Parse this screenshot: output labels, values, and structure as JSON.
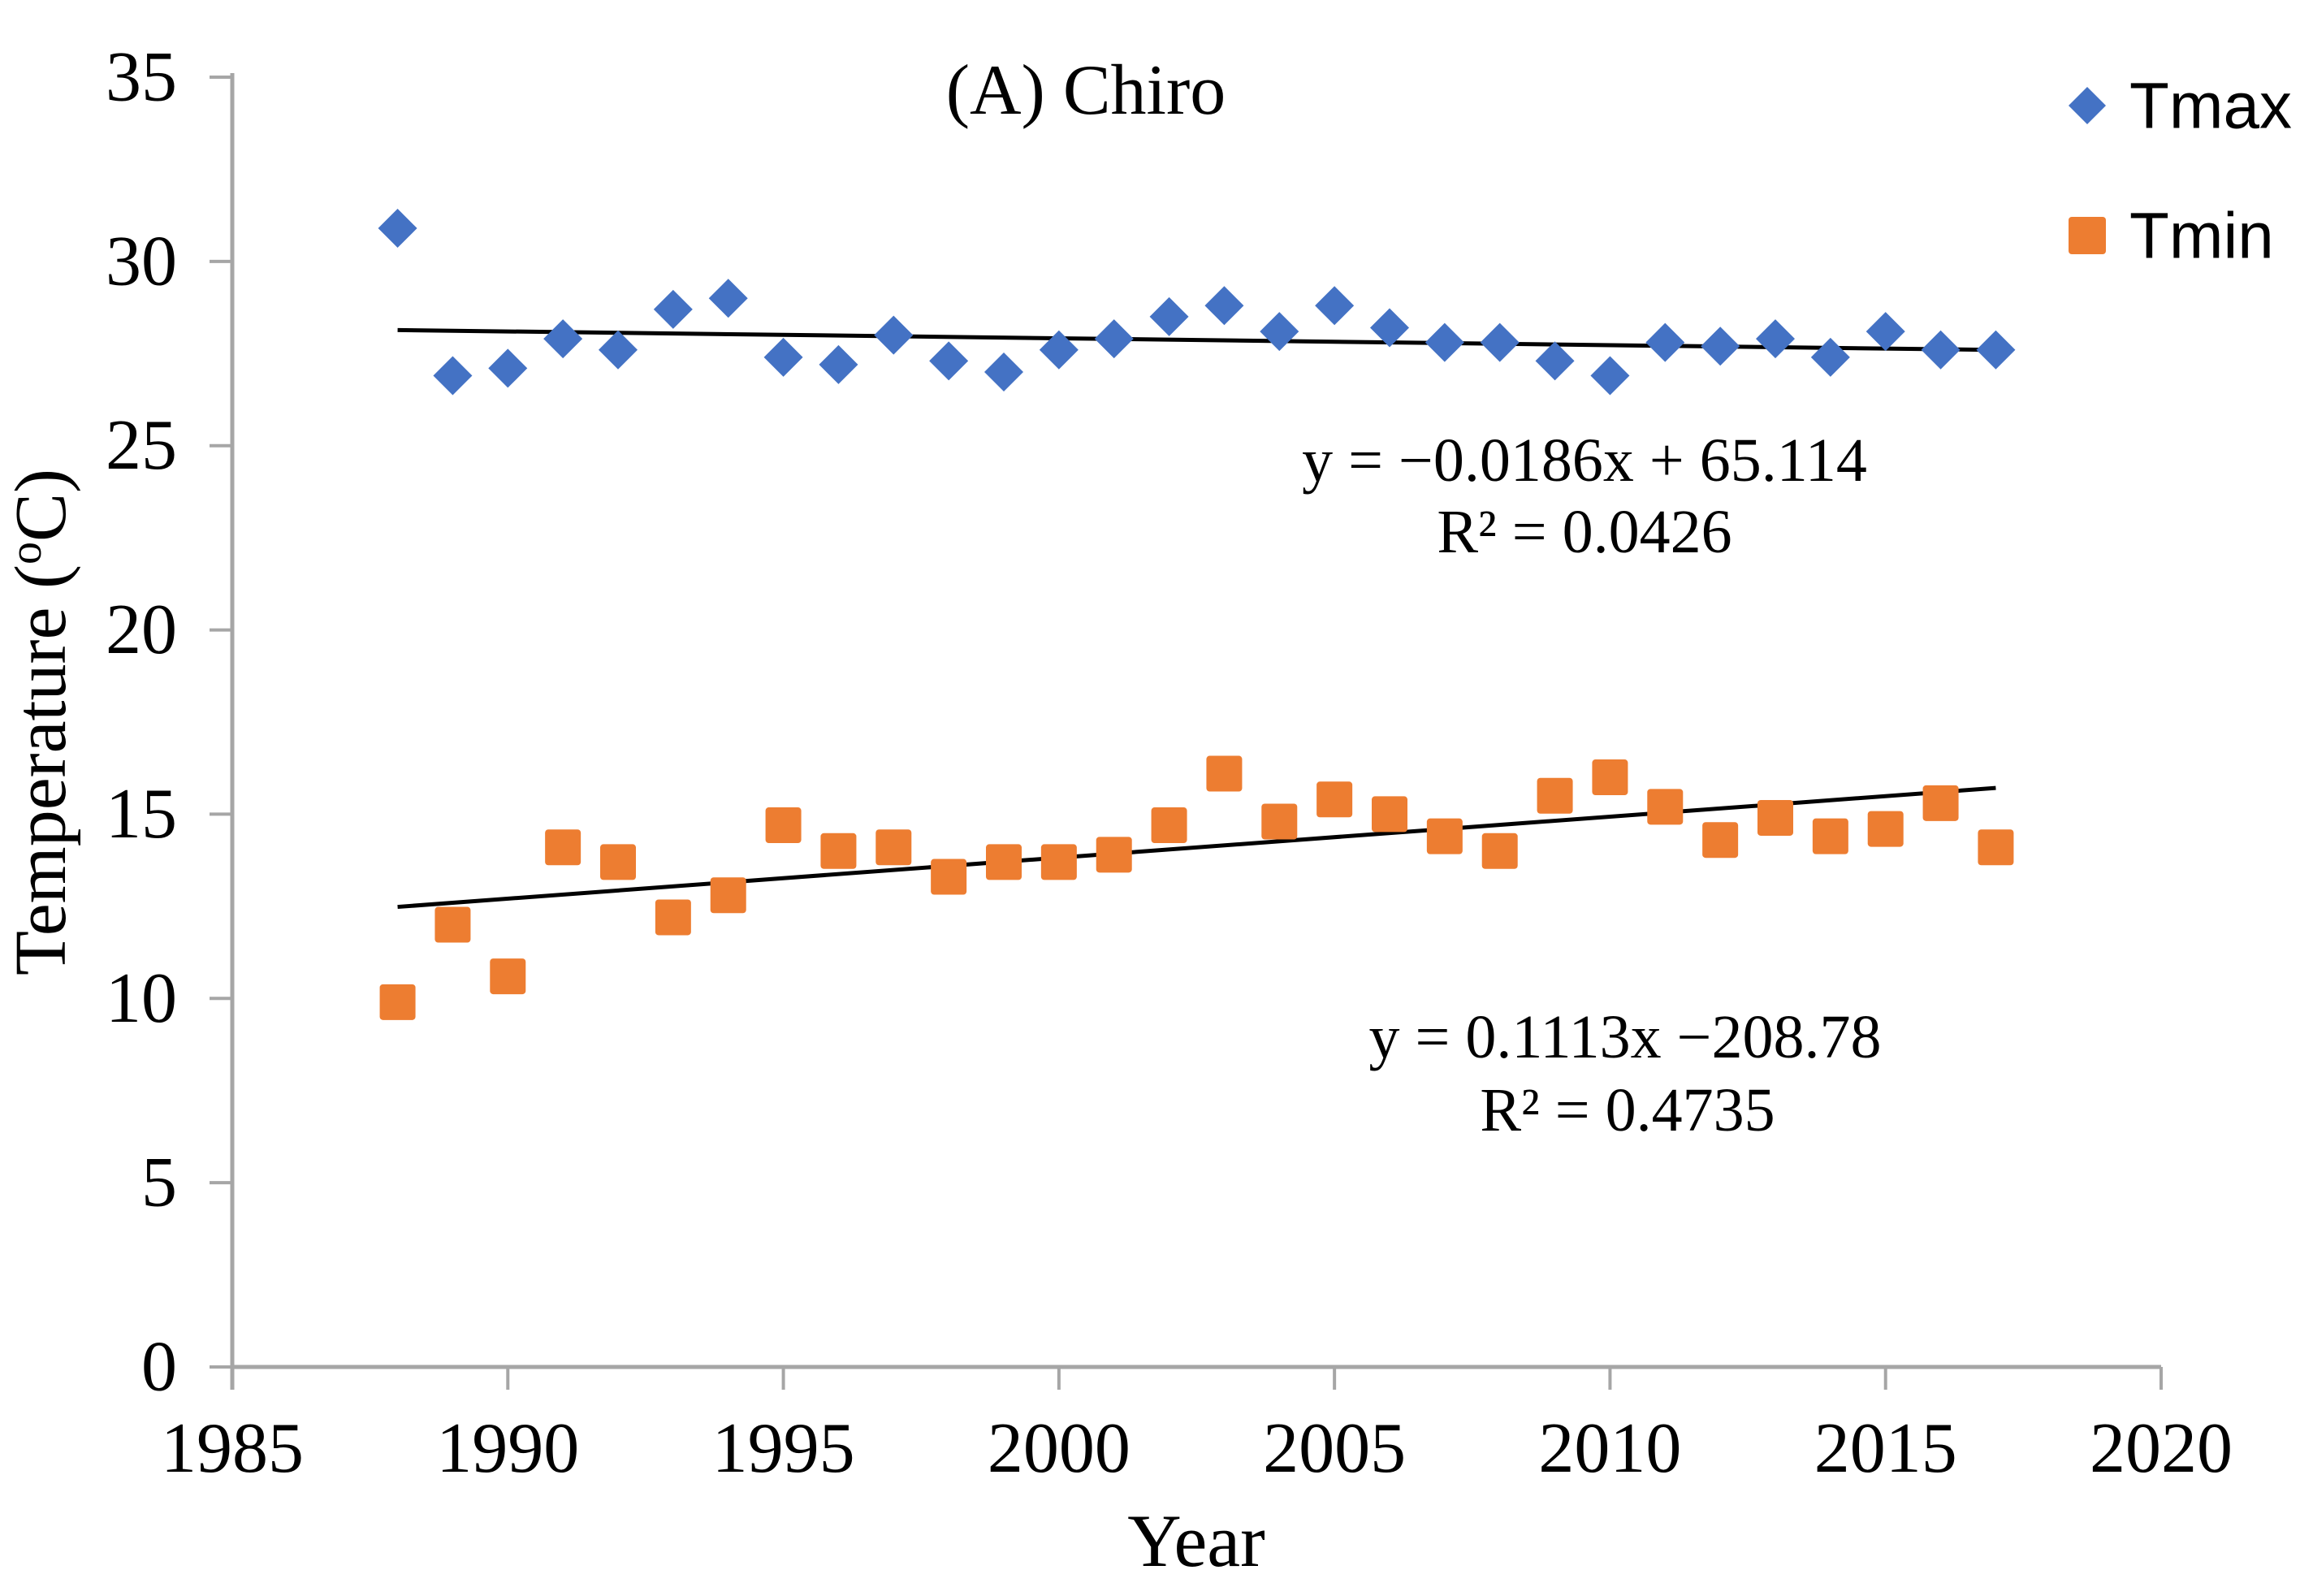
{
  "title": {
    "text": "(A) Chiro"
  },
  "legend": {
    "items": [
      {
        "label": "Tmax",
        "marker": "diamond",
        "color": "#4472C4"
      },
      {
        "label": "Tmin",
        "marker": "square",
        "color": "#ED7D31"
      }
    ]
  },
  "annotations": {
    "tmax": {
      "line1": "y = −0.0186x + 65.114",
      "line2": "R² = 0.0426"
    },
    "tmin": {
      "line1": "y = 0.1113x −208.78",
      "line2": "R² = 0.4735"
    }
  },
  "axes": {
    "x": {
      "label": "Year",
      "ticks": [
        1985,
        1990,
        1995,
        2000,
        2005,
        2010,
        2015,
        2020
      ]
    },
    "y": {
      "label_prefix": "Temperature (",
      "label_degree": "o",
      "label_suffix": "C)",
      "ticks": [
        0,
        5,
        10,
        15,
        20,
        25,
        30,
        35
      ]
    }
  },
  "colors": {
    "tmax": "#4472C4",
    "tmin": "#ED7D31",
    "axis": "#A6A6A6",
    "trendline": "#000000",
    "text": "#000000",
    "background": "#FFFFFF"
  },
  "chart_data": {
    "type": "scatter",
    "title": "(A) Chiro",
    "xlabel": "Year",
    "ylabel": "Temperature (°C)",
    "xlim": [
      1985,
      2020
    ],
    "ylim": [
      0,
      35
    ],
    "x_ticks": [
      1985,
      1990,
      1995,
      2000,
      2005,
      2010,
      2015,
      2020
    ],
    "y_ticks": [
      0,
      5,
      10,
      15,
      20,
      25,
      30,
      35
    ],
    "grid": false,
    "legend_position": "top-right",
    "x": [
      1988,
      1989,
      1990,
      1991,
      1992,
      1993,
      1994,
      1995,
      1996,
      1997,
      1998,
      1999,
      2000,
      2001,
      2002,
      2003,
      2004,
      2005,
      2006,
      2007,
      2008,
      2009,
      2010,
      2011,
      2012,
      2013,
      2014,
      2015,
      2016,
      2017
    ],
    "series": [
      {
        "name": "Tmax",
        "marker": "diamond",
        "color": "#4472C4",
        "values": [
          30.9,
          26.9,
          27.1,
          27.9,
          27.6,
          28.7,
          29.0,
          27.4,
          27.2,
          28.0,
          27.3,
          27.0,
          27.6,
          27.9,
          28.5,
          28.8,
          28.1,
          28.8,
          28.2,
          27.8,
          27.8,
          27.3,
          26.9,
          27.8,
          27.7,
          27.9,
          27.4,
          28.1,
          27.6,
          27.6
        ],
        "trendline": {
          "slope": -0.0186,
          "intercept": 65.114,
          "r_squared": 0.0426,
          "equation_label": "y = −0.0186x + 65.114",
          "r2_label": "R² = 0.0426"
        }
      },
      {
        "name": "Tmin",
        "marker": "square",
        "color": "#ED7D31",
        "values": [
          9.9,
          12.0,
          10.6,
          14.1,
          13.7,
          12.2,
          12.8,
          14.7,
          14.0,
          14.1,
          13.3,
          13.7,
          13.7,
          13.9,
          14.7,
          16.1,
          14.8,
          15.4,
          15.0,
          14.4,
          14.0,
          15.5,
          16.0,
          15.2,
          14.3,
          14.9,
          14.4,
          14.6,
          15.3,
          14.1
        ],
        "trendline": {
          "slope": 0.1113,
          "intercept": -208.78,
          "r_squared": 0.4735,
          "equation_label": "y = 0.1113x −208.78",
          "r2_label": "R² = 0.4735"
        }
      }
    ]
  }
}
